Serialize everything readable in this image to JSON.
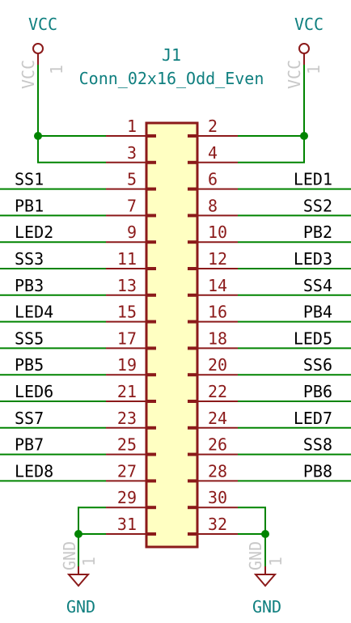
{
  "connector": {
    "reference": "J1",
    "value": "Conn_02x16_Odd_Even",
    "body_color": "#ffffc2",
    "outline_color": "#8b1a1a"
  },
  "power": {
    "vcc_left": "VCC",
    "vcc_right": "VCC",
    "vcc_left_ref": "VCC",
    "vcc_right_ref": "VCC",
    "vcc_left_pin": "1",
    "vcc_right_pin": "1",
    "gnd_left": "GND",
    "gnd_right": "GND",
    "gnd_left_ref": "GND",
    "gnd_right_ref": "GND",
    "gnd_left_pin": "1",
    "gnd_right_pin": "1"
  },
  "pins": [
    {
      "left_num": "1",
      "right_num": "2",
      "left_net": "",
      "right_net": ""
    },
    {
      "left_num": "3",
      "right_num": "4",
      "left_net": "",
      "right_net": ""
    },
    {
      "left_num": "5",
      "right_num": "6",
      "left_net": "SS1",
      "right_net": "LED1"
    },
    {
      "left_num": "7",
      "right_num": "8",
      "left_net": "PB1",
      "right_net": "SS2"
    },
    {
      "left_num": "9",
      "right_num": "10",
      "left_net": "LED2",
      "right_net": "PB2"
    },
    {
      "left_num": "11",
      "right_num": "12",
      "left_net": "SS3",
      "right_net": "LED3"
    },
    {
      "left_num": "13",
      "right_num": "14",
      "left_net": "PB3",
      "right_net": "SS4"
    },
    {
      "left_num": "15",
      "right_num": "16",
      "left_net": "LED4",
      "right_net": "PB4"
    },
    {
      "left_num": "17",
      "right_num": "18",
      "left_net": "SS5",
      "right_net": "LED5"
    },
    {
      "left_num": "19",
      "right_num": "20",
      "left_net": "PB5",
      "right_net": "SS6"
    },
    {
      "left_num": "21",
      "right_num": "22",
      "left_net": "LED6",
      "right_net": "PB6"
    },
    {
      "left_num": "23",
      "right_num": "24",
      "left_net": "SS7",
      "right_net": "LED7"
    },
    {
      "left_num": "25",
      "right_num": "26",
      "left_net": "PB7",
      "right_net": "SS8"
    },
    {
      "left_num": "27",
      "right_num": "28",
      "left_net": "LED8",
      "right_net": "PB8"
    },
    {
      "left_num": "29",
      "right_num": "30",
      "left_net": "",
      "right_net": ""
    },
    {
      "left_num": "31",
      "right_num": "32",
      "left_net": "",
      "right_net": ""
    }
  ],
  "colors": {
    "wire": "#008400",
    "pin": "#8b1a1a",
    "label": "#0f7f7f",
    "hidden_text": "#c8c8c8",
    "power_symbol": "#8b1a1a"
  }
}
